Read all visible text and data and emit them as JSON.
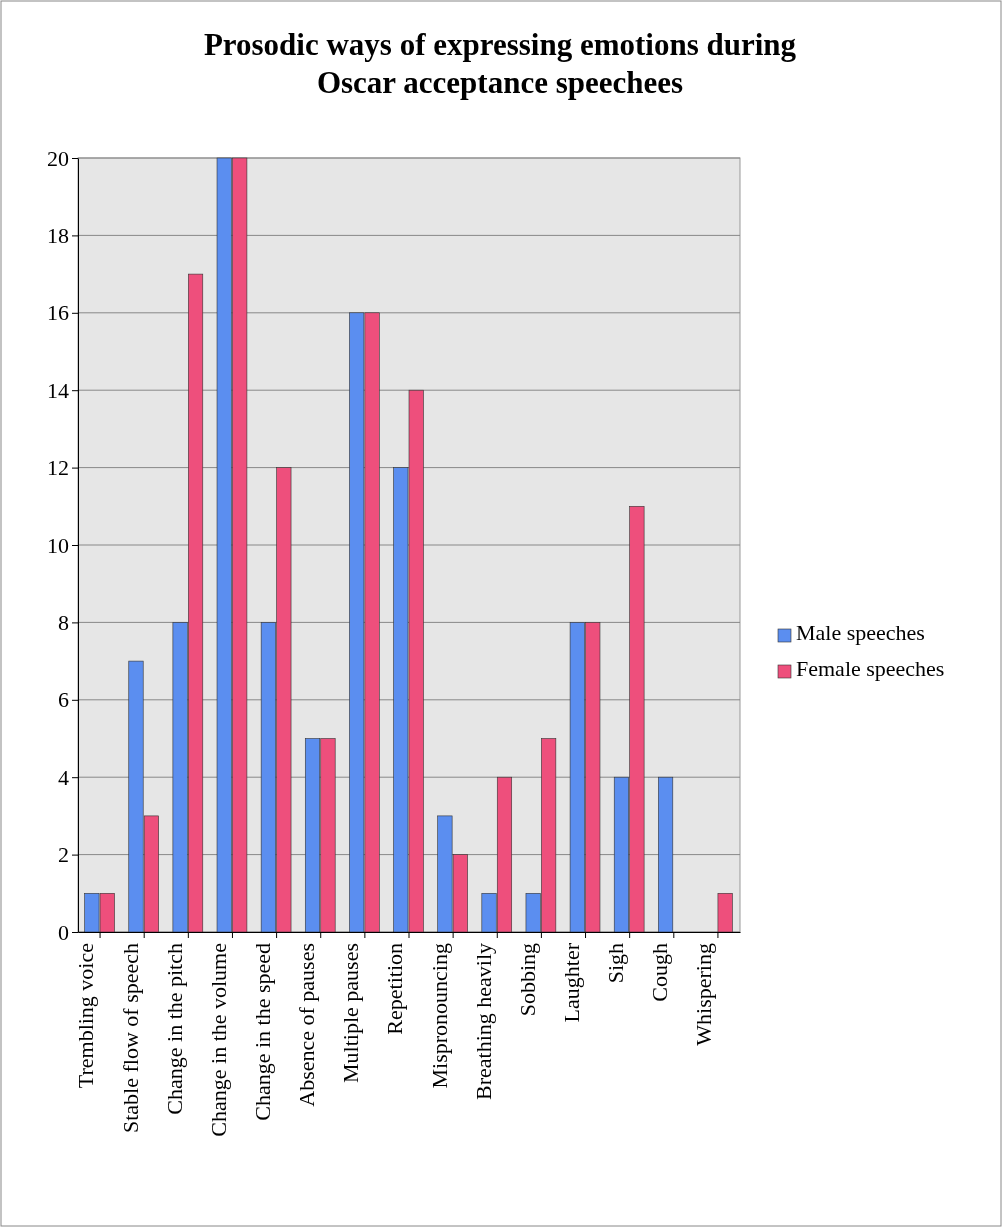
{
  "chart_data": {
    "type": "bar",
    "title": "Prosodic ways of expressing emotions during Oscar acceptance speechees",
    "categories": [
      "Trembling voice",
      "Stable flow of speech",
      "Change in the pitch",
      "Change in the volume",
      "Change in the speed",
      "Absence of pauses",
      "Multiple pauses",
      "Repetition",
      "Mispronouncing",
      "Breathing heavily",
      "Sobbing",
      "Laughter",
      "Sigh",
      "Cough",
      "Whispering"
    ],
    "series": [
      {
        "name": "Male speeches",
        "color": "#5b8ef0",
        "values": [
          1,
          7,
          8,
          20,
          8,
          5,
          16,
          12,
          3,
          1,
          1,
          8,
          4,
          4,
          0
        ]
      },
      {
        "name": "Female speeches",
        "color": "#ee4f7c",
        "values": [
          1,
          3,
          17,
          20,
          12,
          5,
          16,
          14,
          2,
          4,
          5,
          8,
          11,
          0,
          1
        ]
      }
    ],
    "ylim": [
      0,
      20
    ],
    "yticks": [
      0,
      2,
      4,
      6,
      8,
      10,
      12,
      14,
      16,
      18,
      20
    ],
    "grid": "y",
    "legend": "right"
  }
}
